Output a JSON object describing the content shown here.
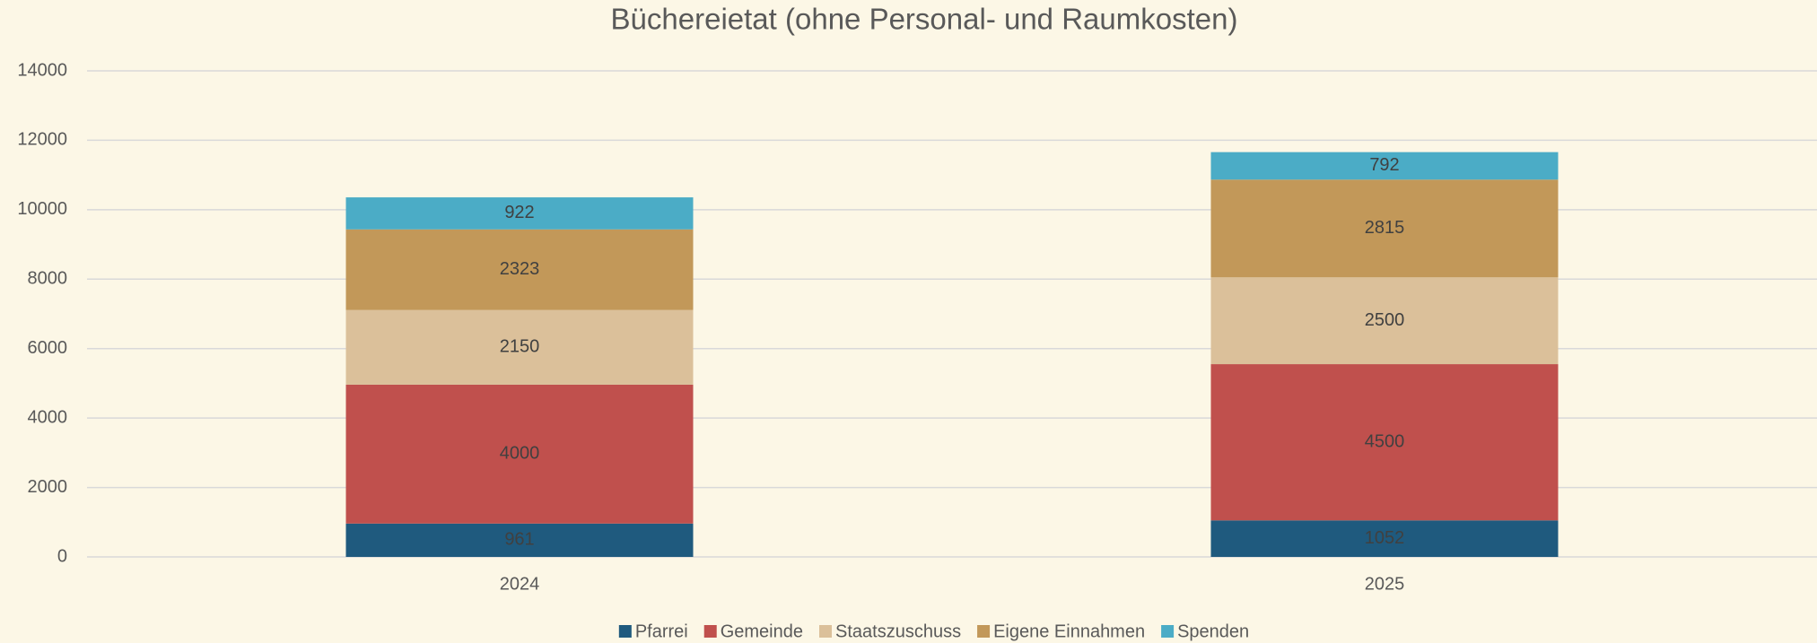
{
  "chart_data": {
    "type": "stacked_bar",
    "title": "Büchereietat (ohne Personal- und Raumkosten)",
    "categories": [
      "2024",
      "2025"
    ],
    "series": [
      {
        "name": "Pfarrei",
        "color": "#1f5a7e",
        "values": [
          961,
          1052
        ]
      },
      {
        "name": "Gemeinde",
        "color": "#c0504d",
        "values": [
          4000,
          4500
        ]
      },
      {
        "name": "Staatszuschuss",
        "color": "#dbc09a",
        "values": [
          2150,
          2500
        ]
      },
      {
        "name": "Eigene Einnahmen",
        "color": "#c29859",
        "values": [
          2323,
          2815
        ]
      },
      {
        "name": "Spenden",
        "color": "#4bacc6",
        "values": [
          922,
          792
        ]
      }
    ],
    "ylim": [
      0,
      14000
    ],
    "yticks": [
      0,
      2000,
      4000,
      6000,
      8000,
      10000,
      12000,
      14000
    ],
    "grid": true,
    "legend": "bottom"
  }
}
